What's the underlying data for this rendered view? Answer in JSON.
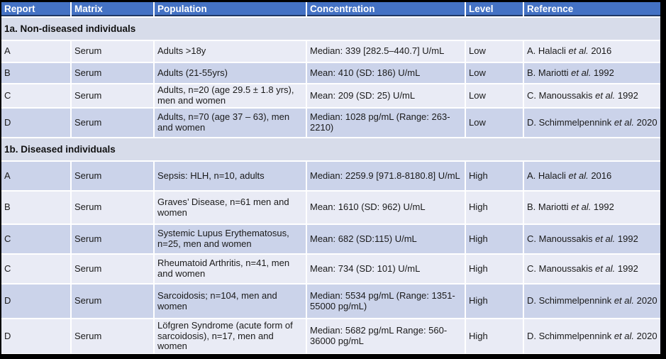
{
  "table": {
    "columns": [
      "Report",
      "Matrix",
      "Population",
      "Concentration",
      "Level",
      "Reference"
    ],
    "colors": {
      "header_bg": "#4472C4",
      "header_text": "#FFFFFF",
      "header_border": "#203864",
      "row_light": "#E9EBF5",
      "row_dark": "#CBD3EA",
      "section_band_bg": "#D7DCEA",
      "frame_bg": "#000000"
    },
    "sections": [
      {
        "title": "1a. Non-diseased individuals",
        "rows": [
          {
            "report": "A",
            "matrix": "Serum",
            "population": "Adults >18y",
            "concentration": "Median: 339 [282.5–440.7] U/mL",
            "level": "Low",
            "ref_pre": "A. Halacli ",
            "ref_it": "et al.",
            "ref_post": " 2016"
          },
          {
            "report": "B",
            "matrix": "Serum",
            "population": "Adults (21-55yrs)",
            "concentration": "Mean: 410 (SD: 186) U/mL",
            "level": "Low",
            "ref_pre": "B. Mariotti ",
            "ref_it": "et al.",
            "ref_post": " 1992"
          },
          {
            "report": "C",
            "matrix": "Serum",
            "population": "Adults, n=20 (age 29.5 ± 1.8 yrs), men and women",
            "concentration": "Mean: 209 (SD: 25) U/mL",
            "level": "Low",
            "ref_pre": "C. Manoussakis ",
            "ref_it": "et al.",
            "ref_post": " 1992"
          },
          {
            "report": "D",
            "matrix": "Serum",
            "population": "Adults, n=70 (age 37 – 63), men and women",
            "concentration": "Median: 1028 pg/mL (Range: 263-2210)",
            "level": "Low",
            "ref_pre": "D. Schimmelpennink ",
            "ref_it": "et al.",
            "ref_post": " 2020"
          }
        ]
      },
      {
        "title": "1b. Diseased individuals",
        "rows": [
          {
            "report": "A",
            "matrix": "Serum",
            "population": "Sepsis: HLH, n=10, adults",
            "concentration": "Median: 2259.9 [971.8-8180.8] U/mL",
            "level": "High",
            "ref_pre": "A. Halacli ",
            "ref_it": "et al.",
            "ref_post": " 2016"
          },
          {
            "report": "B",
            "matrix": "Serum",
            "population": "Graves’ Disease, n=61 men and women",
            "concentration": "Mean: 1610 (SD: 962) U/mL",
            "level": "High",
            "ref_pre": "B. Mariotti ",
            "ref_it": "et al.",
            "ref_post": " 1992"
          },
          {
            "report": "C",
            "matrix": "Serum",
            "population": "Systemic Lupus Erythematosus, n=25, men and women",
            "concentration": "Mean: 682 (SD:115) U/mL",
            "level": "High",
            "ref_pre": "C. Manoussakis ",
            "ref_it": "et al.",
            "ref_post": " 1992"
          },
          {
            "report": "C",
            "matrix": "Serum",
            "population": "Rheumatoid Arthritis, n=41, men and women",
            "concentration": "Mean: 734 (SD: 101) U/mL",
            "level": "High",
            "ref_pre": "C. Manoussakis ",
            "ref_it": "et al.",
            "ref_post": " 1992"
          },
          {
            "report": "D",
            "matrix": "Serum",
            "population": "Sarcoidosis; n=104, men and women",
            "concentration": "Median: 5534 pg/mL (Range: 1351-55000 pg/mL)",
            "level": "High",
            "ref_pre": "D. Schimmelpennink ",
            "ref_it": "et al.",
            "ref_post": " 2020"
          },
          {
            "report": "D",
            "matrix": "Serum",
            "population": "Löfgren Syndrome (acute form of sarcoidosis), n=17, men and women",
            "concentration": "Median: 5682 pg/mL Range: 560-36000 pg/mL",
            "level": "High",
            "ref_pre": "D. Schimmelpennink ",
            "ref_it": "et al.",
            "ref_post": " 2020"
          }
        ]
      }
    ]
  }
}
